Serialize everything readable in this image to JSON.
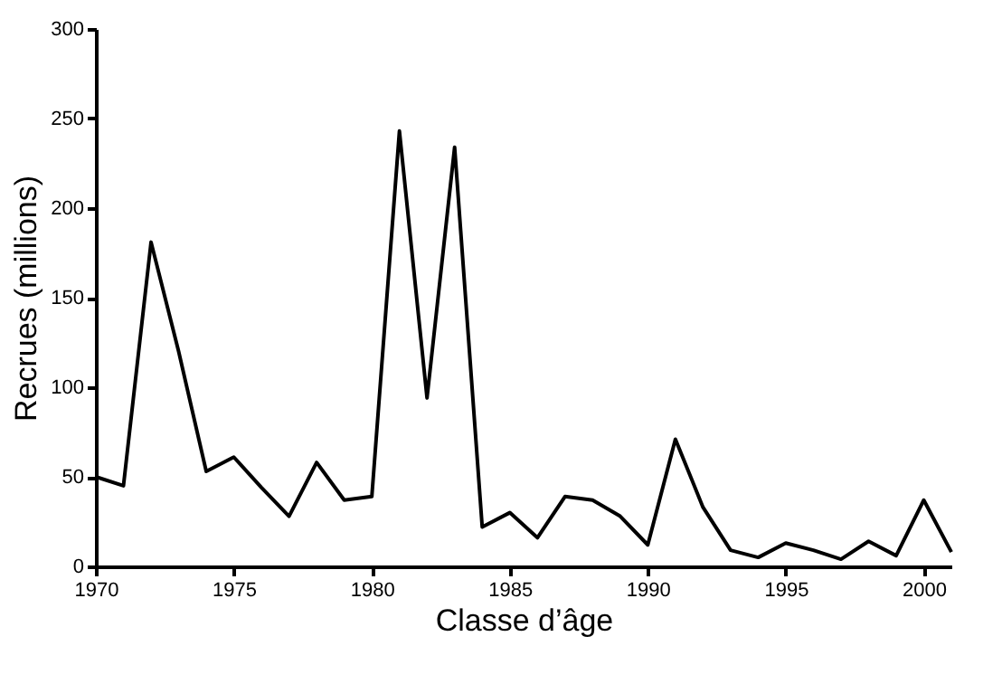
{
  "chart_data": {
    "type": "line",
    "xlabel": "Classe d’âge",
    "ylabel": "Recrues (millions)",
    "x": [
      1970,
      1971,
      1972,
      1973,
      1974,
      1975,
      1976,
      1977,
      1978,
      1979,
      1980,
      1981,
      1982,
      1983,
      1984,
      1985,
      1986,
      1987,
      1988,
      1989,
      1990,
      1991,
      1992,
      1993,
      1994,
      1995,
      1996,
      1997,
      1998,
      1999,
      2000,
      2001
    ],
    "series": [
      {
        "color": "#000000",
        "values": [
          50,
          45,
          181,
          120,
          53,
          61,
          44,
          28,
          58,
          37,
          39,
          243,
          94,
          234,
          22,
          30,
          16,
          39,
          37,
          28,
          12,
          71,
          33,
          9,
          5,
          13,
          9,
          4,
          14,
          6,
          37,
          8
        ]
      }
    ],
    "xlim": [
      1970,
      2001
    ],
    "xticks": [
      1970,
      1975,
      1980,
      1985,
      1990,
      1995,
      2000
    ],
    "ylim": [
      0,
      300
    ],
    "yticks": [
      0,
      50,
      100,
      150,
      200,
      250,
      300
    ],
    "grid": false,
    "marker": "none",
    "line_style": "solid"
  }
}
